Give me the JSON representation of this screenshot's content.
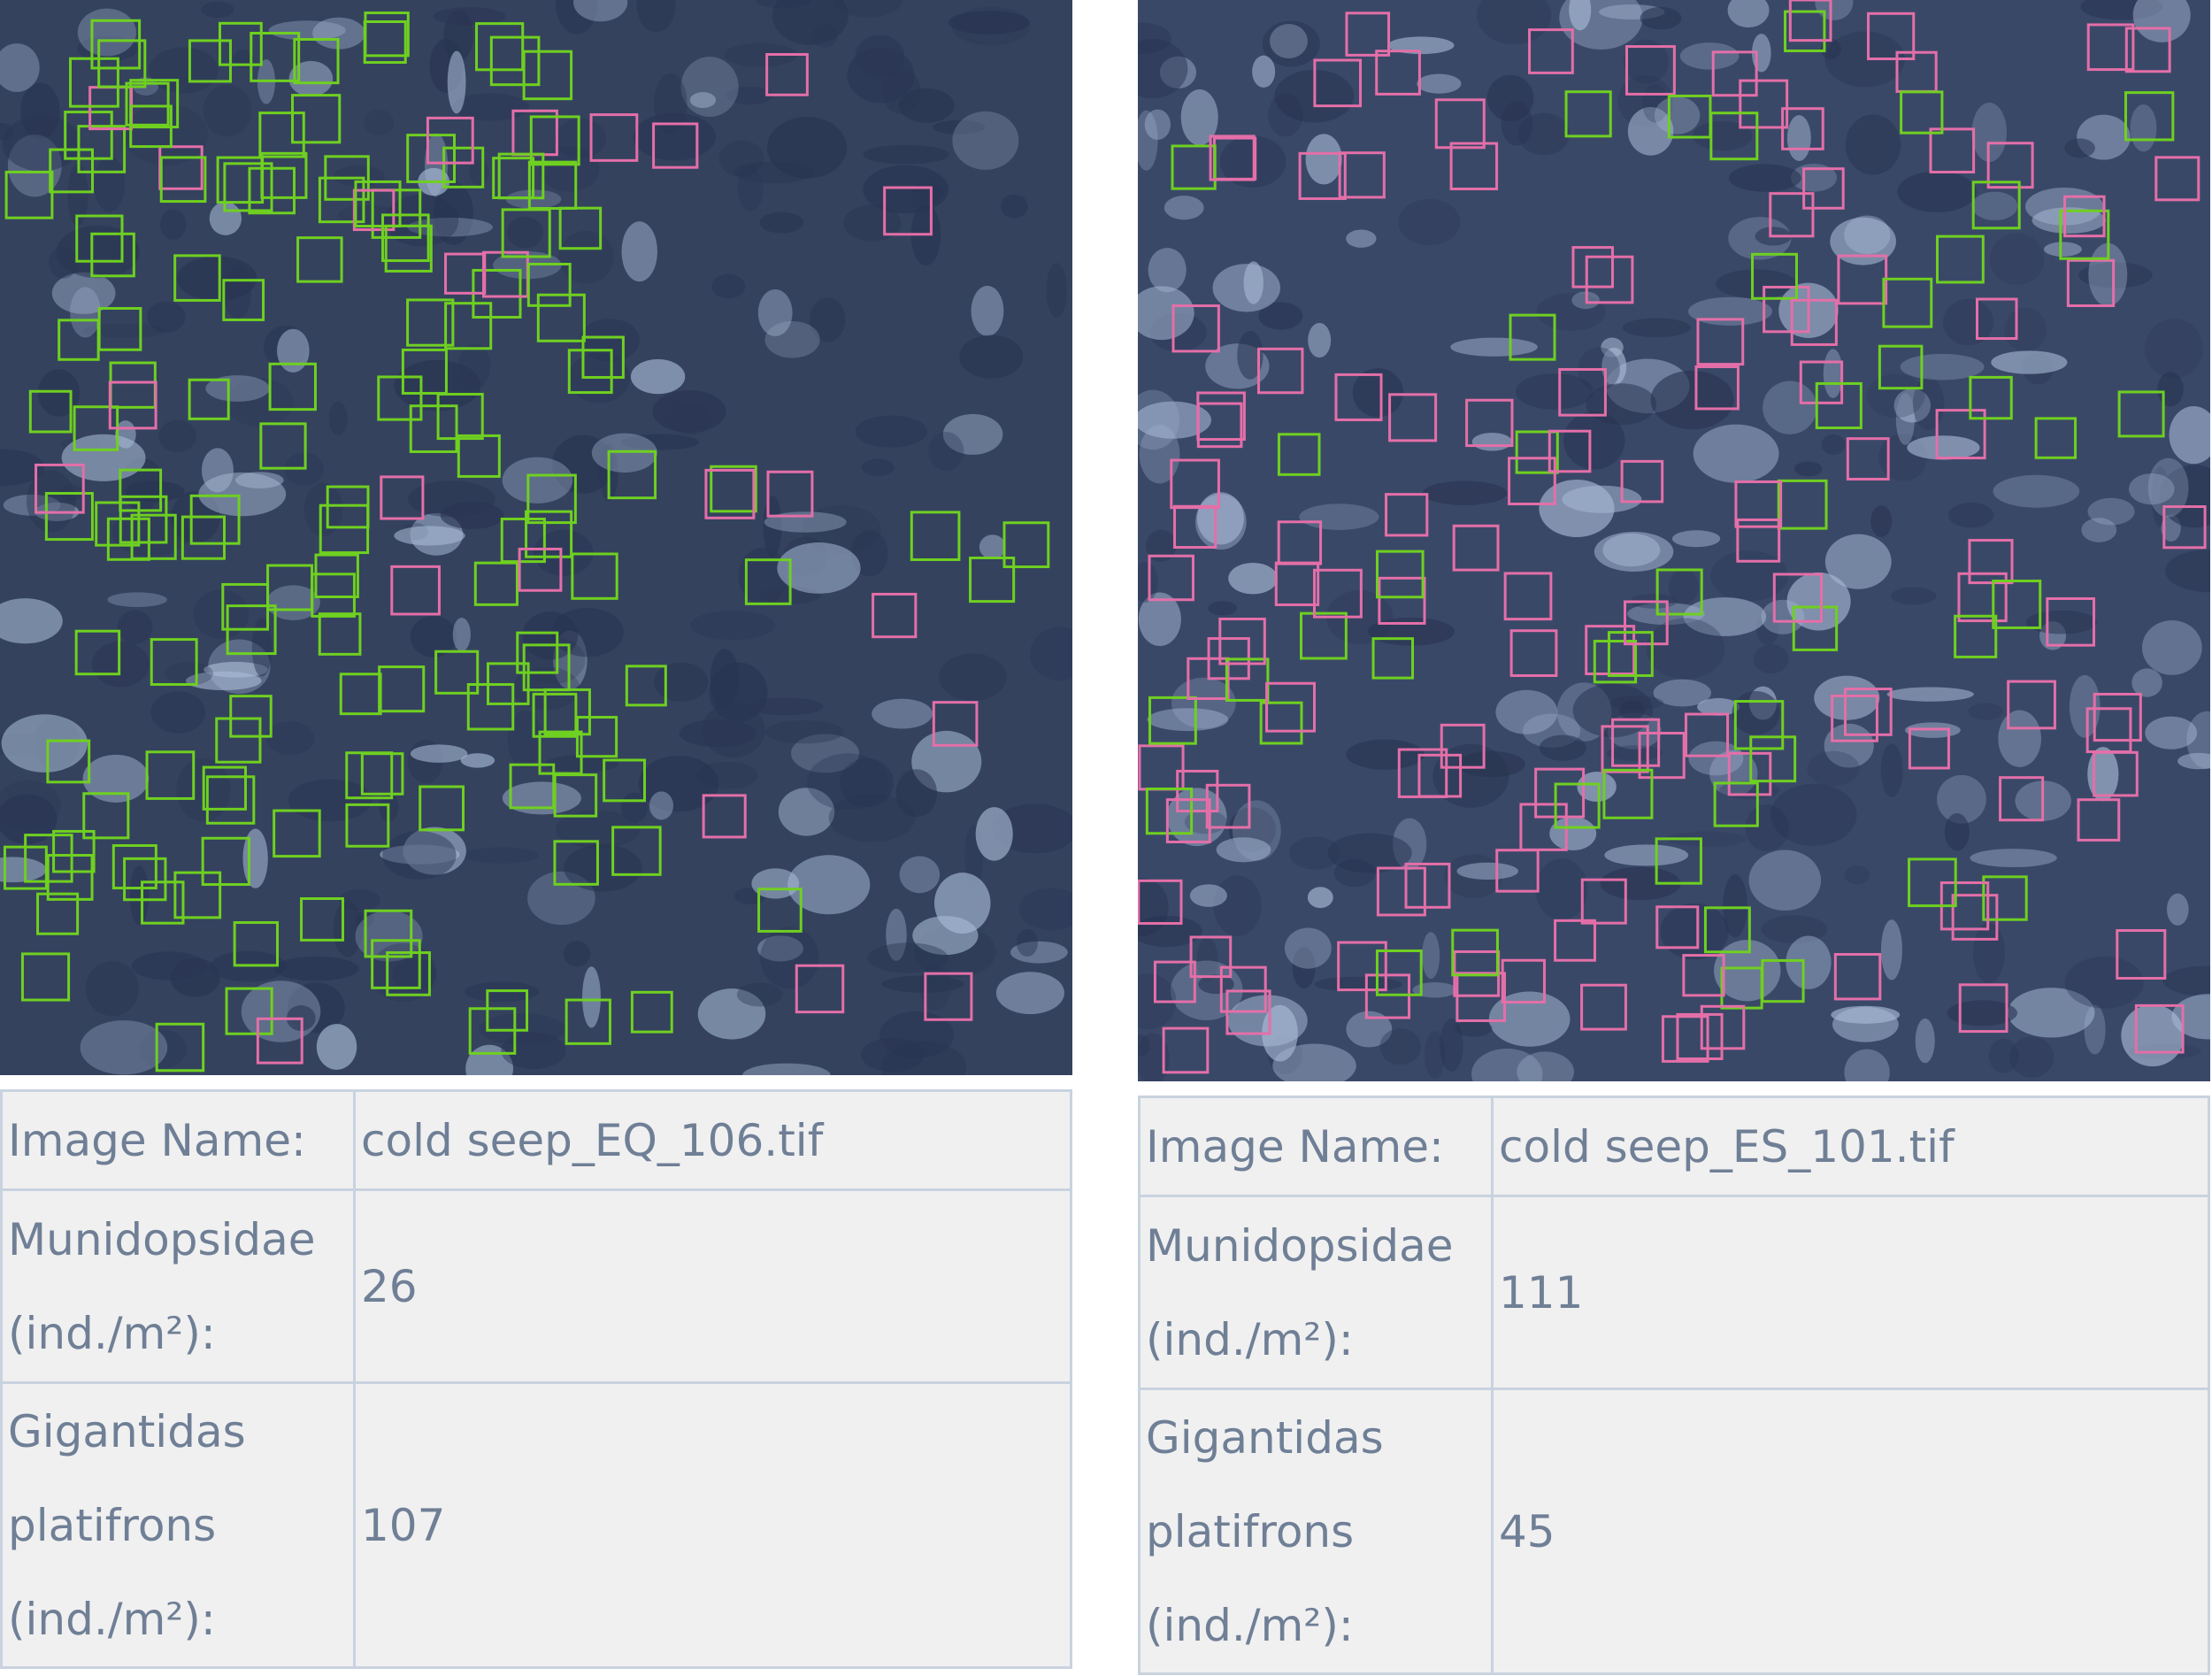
{
  "panels": [
    {
      "table": {
        "rows": [
          {
            "label": "Image Name:",
            "value": "cold seep_EQ_106.tif"
          },
          {
            "label": "Munidopsidae (ind./m²):",
            "value": 26
          },
          {
            "label": "Gigantidas platifrons (ind./m²):",
            "value": 107
          }
        ]
      }
    },
    {
      "table": {
        "rows": [
          {
            "label": "Image Name:",
            "value": "cold seep_ES_101.tif"
          },
          {
            "label": "Munidopsidae (ind./m²):",
            "value": 111
          },
          {
            "label": "Gigantidas platifrons (ind./m²):",
            "value": 45
          }
        ]
      }
    }
  ]
}
